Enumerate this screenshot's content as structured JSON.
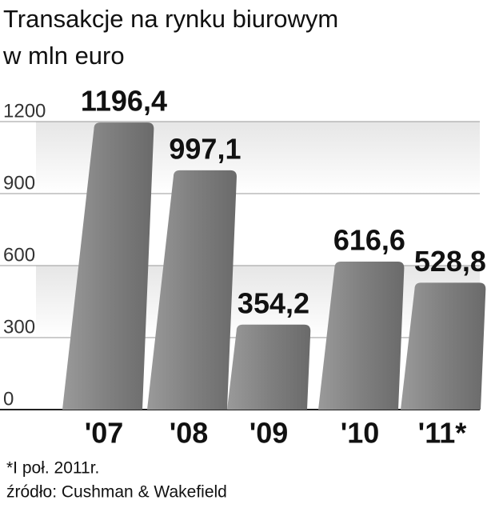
{
  "chart_data": {
    "type": "bar",
    "title": "Transakcje na rynku biurowym",
    "subtitle": "w mln euro",
    "categories": [
      "'07",
      "'08",
      "'09",
      "'10",
      "'11*"
    ],
    "values": [
      1196.4,
      997.1,
      354.2,
      616.6,
      528.8
    ],
    "value_labels": [
      "1196,4",
      "997,1",
      "354,2",
      "616,6",
      "528,8"
    ],
    "color": "#777777",
    "ylim": [
      0,
      1200
    ],
    "yticks": [
      0,
      300,
      600,
      900,
      1200
    ],
    "grid": true,
    "notes": [
      "*I poł. 2011r.",
      "źródło: Cushman & Wakefield"
    ]
  }
}
